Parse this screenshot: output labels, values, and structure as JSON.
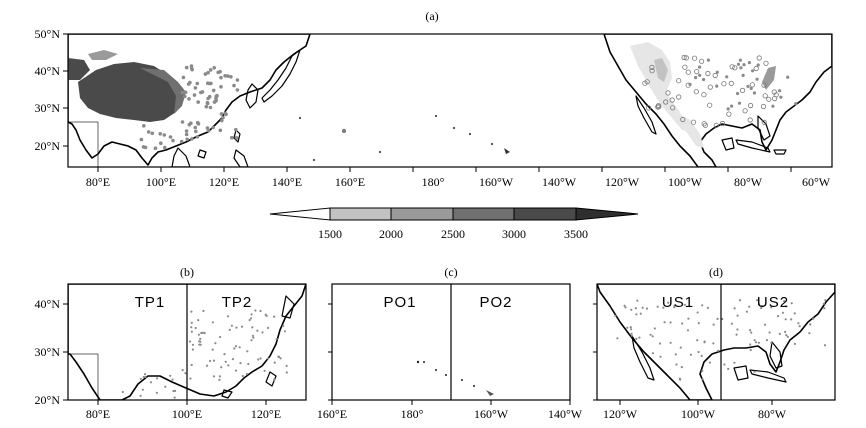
{
  "panel_a": {
    "title": "(a)",
    "lat_labels": [
      "50°N",
      "40°N",
      "30°N",
      "20°N"
    ],
    "lon_labels": [
      "80°E",
      "100°E",
      "120°E",
      "140°E",
      "160°E",
      "180°",
      "160°W",
      "140°W",
      "120°W",
      "100°W",
      "80°W",
      "60°W"
    ]
  },
  "colorbar": {
    "labels": [
      "1500",
      "2000",
      "2500",
      "3000",
      "3500"
    ],
    "colors": [
      "#ffffff",
      "#e6e6e6",
      "#c2c2c2",
      "#9a9a9a",
      "#707070",
      "#4a4a4a",
      "#2e2e2e"
    ]
  },
  "panel_b": {
    "title": "(b)",
    "regions": [
      "TP1",
      "TP2"
    ],
    "lat_labels": [
      "40°N",
      "30°N",
      "20°N"
    ],
    "lon_labels": [
      "80°E",
      "100°E",
      "120°E"
    ]
  },
  "panel_c": {
    "title": "(c)",
    "regions": [
      "PO1",
      "PO2"
    ],
    "lon_labels": [
      "160°E",
      "180°",
      "160°W",
      "140°W"
    ]
  },
  "panel_d": {
    "title": "(d)",
    "regions": [
      "US1",
      "US2"
    ],
    "lon_labels": [
      "120°W",
      "100°W",
      "80°W"
    ]
  }
}
